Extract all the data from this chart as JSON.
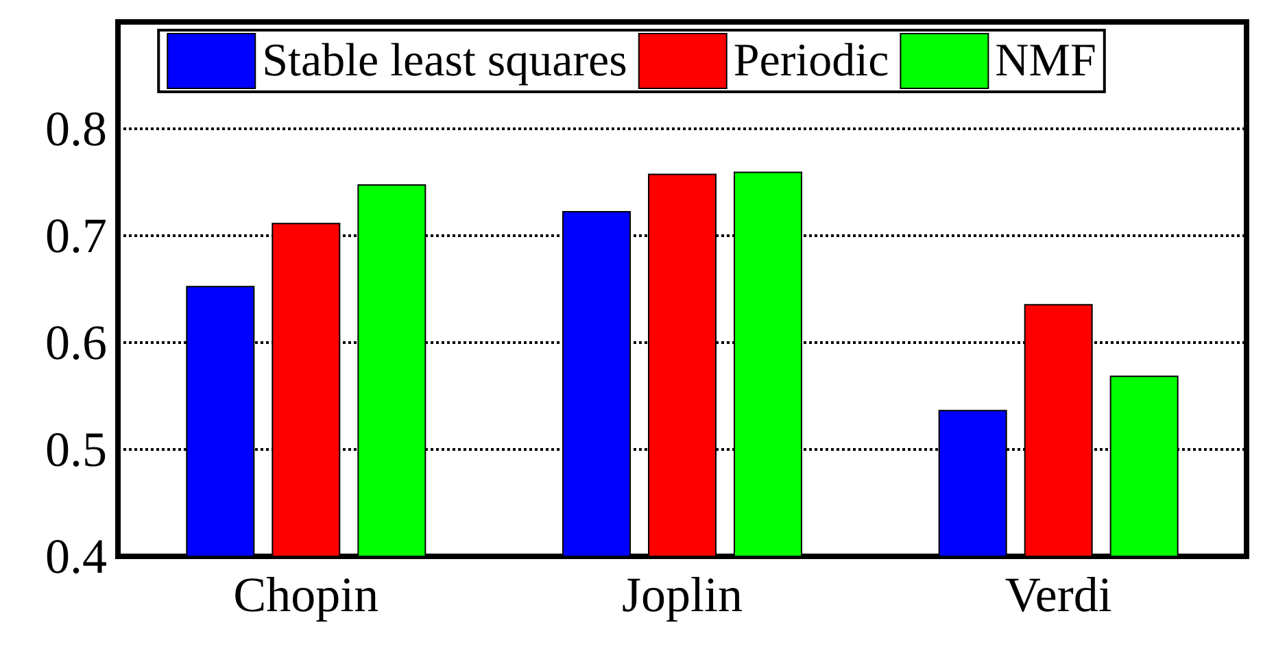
{
  "chart_data": {
    "type": "bar",
    "categories": [
      "Chopin",
      "Joplin",
      "Verdi"
    ],
    "series": [
      {
        "name": "Stable least squares",
        "color": "#0000ff",
        "values": [
          0.653,
          0.723,
          0.537
        ]
      },
      {
        "name": "Periodic",
        "color": "#ff0000",
        "values": [
          0.712,
          0.758,
          0.636
        ]
      },
      {
        "name": "NMF",
        "color": "#00ff00",
        "values": [
          0.748,
          0.76,
          0.569
        ]
      }
    ],
    "ylim": [
      0.4,
      0.9
    ],
    "yticks": [
      0.4,
      0.5,
      0.6,
      0.7,
      0.8
    ],
    "grid": "y",
    "legend": "top",
    "line_style": "dotted"
  }
}
